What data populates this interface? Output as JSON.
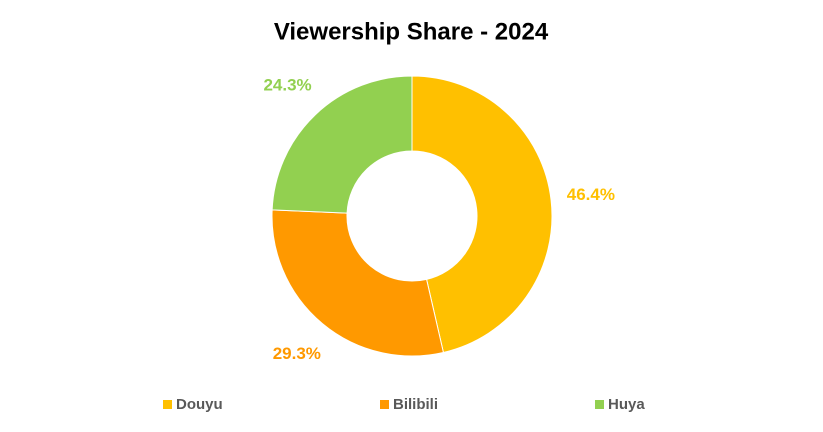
{
  "chart_data": {
    "type": "donut",
    "title": "Viewership Share - 2024",
    "categories": [
      "Douyu",
      "Bilibili",
      "Huya"
    ],
    "values": [
      46.4,
      29.3,
      24.3
    ],
    "value_labels": [
      "46.4%",
      "29.3%",
      "24.3%"
    ],
    "colors": [
      "#ffc000",
      "#ff9900",
      "#92d050"
    ],
    "legend": "bottom"
  }
}
